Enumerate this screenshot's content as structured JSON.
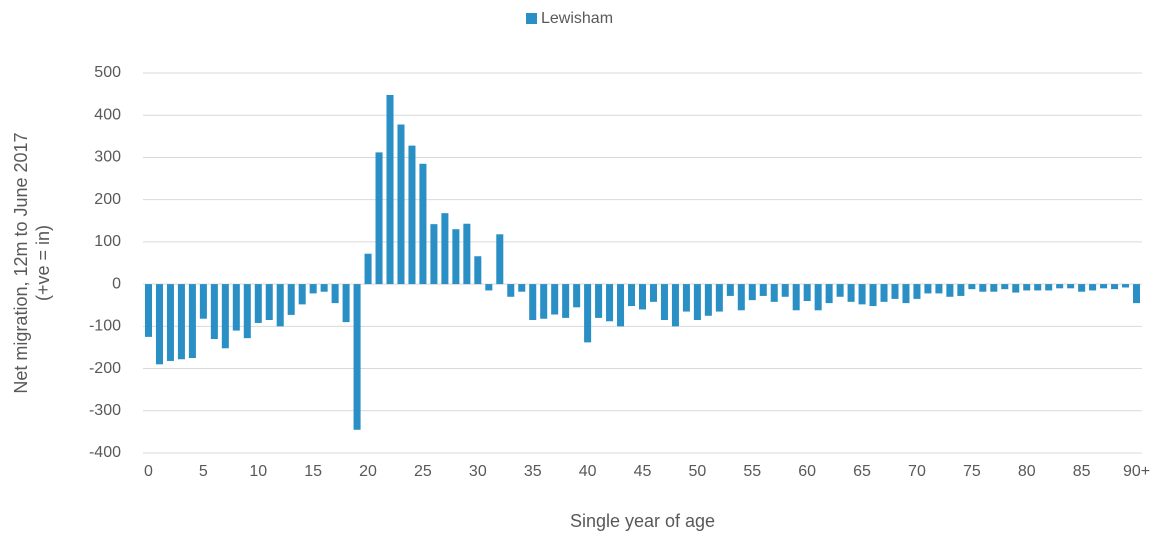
{
  "chart_data": {
    "type": "bar",
    "y_label": [
      "Net migration, 12m to June 2017",
      "(+ve = in)"
    ],
    "x_label": "Single year of age",
    "legend": "top",
    "grid": true,
    "ylim": [
      -400,
      500
    ],
    "yticks": [
      -400,
      -300,
      -200,
      -100,
      0,
      100,
      200,
      300,
      400,
      500
    ],
    "categories": [
      "0",
      null,
      null,
      null,
      null,
      "5",
      null,
      null,
      null,
      null,
      "10",
      null,
      null,
      null,
      null,
      "15",
      null,
      null,
      null,
      null,
      "20",
      null,
      null,
      null,
      null,
      "25",
      null,
      null,
      null,
      null,
      "30",
      null,
      null,
      null,
      null,
      "35",
      null,
      null,
      null,
      null,
      "40",
      null,
      null,
      null,
      null,
      "45",
      null,
      null,
      null,
      null,
      "50",
      null,
      null,
      null,
      null,
      "55",
      null,
      null,
      null,
      null,
      "60",
      null,
      null,
      null,
      null,
      "65",
      null,
      null,
      null,
      null,
      "70",
      null,
      null,
      null,
      null,
      "75",
      null,
      null,
      null,
      null,
      "80",
      null,
      null,
      null,
      null,
      "85",
      null,
      null,
      null,
      null,
      "90+"
    ],
    "series": [
      {
        "name": "Lewisham",
        "color": "#2a8fc4",
        "values": [
          -125,
          -190,
          -182,
          -178,
          -175,
          -82,
          -130,
          -152,
          -110,
          -128,
          -92,
          -85,
          -100,
          -73,
          -48,
          -22,
          -18,
          -45,
          -90,
          -345,
          72,
          312,
          448,
          378,
          328,
          285,
          142,
          168,
          130,
          143,
          66,
          -15,
          118,
          -30,
          -18,
          -85,
          -82,
          -72,
          -80,
          -55,
          -138,
          -80,
          -88,
          -100,
          -52,
          -60,
          -42,
          -85,
          -100,
          -65,
          -85,
          -75,
          -65,
          -28,
          -62,
          -38,
          -28,
          -42,
          -30,
          -62,
          -40,
          -62,
          -45,
          -30,
          -42,
          -48,
          -52,
          -42,
          -35,
          -45,
          -35,
          -22,
          -22,
          -30,
          -28,
          -12,
          -18,
          -18,
          -12,
          -20,
          -15,
          -15,
          -15,
          -10,
          -10,
          -18,
          -15,
          -10,
          -12,
          -8,
          -45
        ]
      }
    ]
  }
}
